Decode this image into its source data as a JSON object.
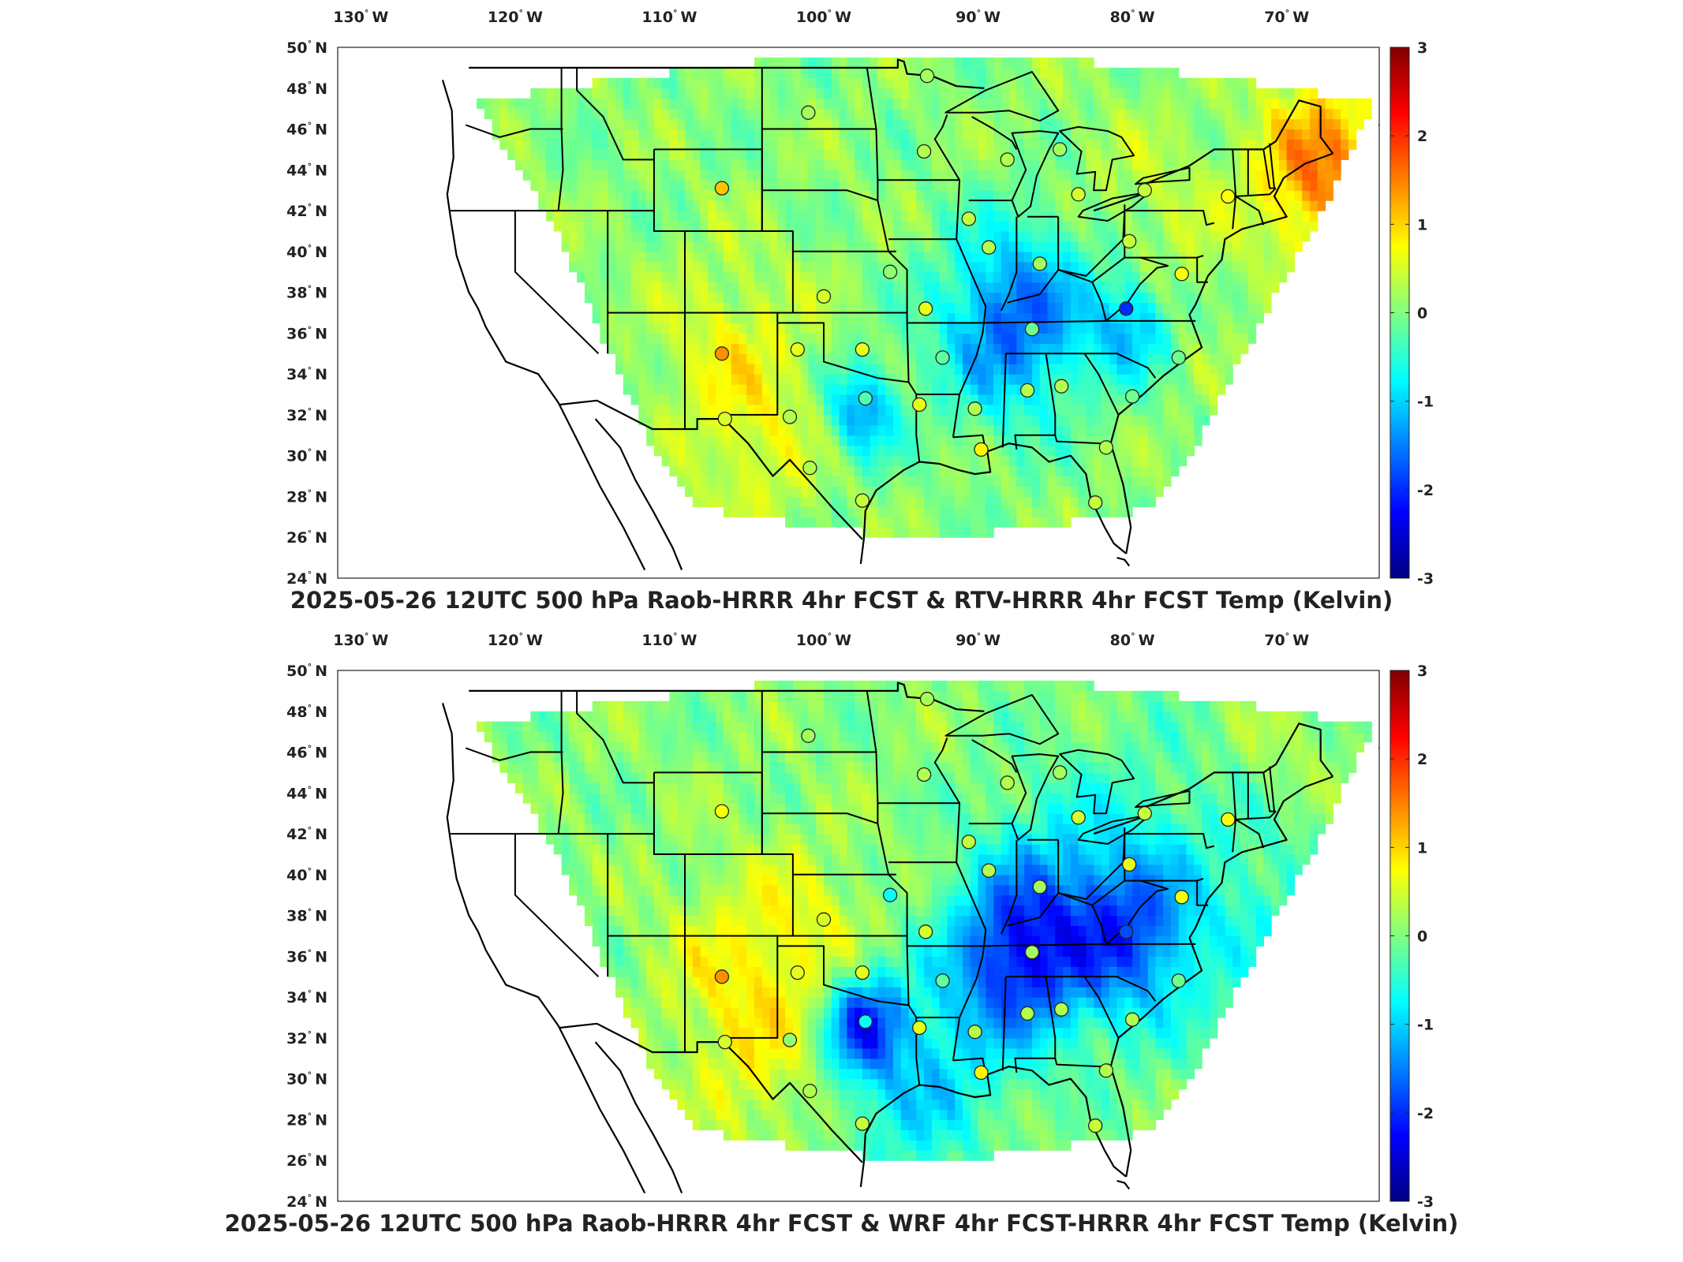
{
  "panels": [
    {
      "title": "2025-05-26 12UTC 500 hPa Raob-HRRR 4hr FCST & RTV-HRRR 4hr FCST Temp (Kelvin)",
      "bias": "warm_east",
      "stations": [
        {
          "lon": -93.3,
          "lat": 48.6,
          "v": 0.2
        },
        {
          "lon": -101.0,
          "lat": 46.8,
          "v": 0.2
        },
        {
          "lon": -93.5,
          "lat": 44.9,
          "v": 0.3
        },
        {
          "lon": -88.1,
          "lat": 44.5,
          "v": 0.3
        },
        {
          "lon": -84.7,
          "lat": 45.0,
          "v": 0.2
        },
        {
          "lon": -106.6,
          "lat": 43.1,
          "v": 1.1
        },
        {
          "lon": -90.6,
          "lat": 41.6,
          "v": 0.4
        },
        {
          "lon": -83.5,
          "lat": 42.8,
          "v": 0.5
        },
        {
          "lon": -79.2,
          "lat": 43.0,
          "v": 0.4
        },
        {
          "lon": -73.8,
          "lat": 42.7,
          "v": 0.7
        },
        {
          "lon": -89.3,
          "lat": 40.2,
          "v": 0.3
        },
        {
          "lon": -80.2,
          "lat": 40.5,
          "v": 0.4
        },
        {
          "lon": -86.0,
          "lat": 39.4,
          "v": 0.2
        },
        {
          "lon": -95.7,
          "lat": 39.0,
          "v": 0.1
        },
        {
          "lon": -76.8,
          "lat": 38.9,
          "v": 0.7
        },
        {
          "lon": -100.0,
          "lat": 37.8,
          "v": 0.5
        },
        {
          "lon": -93.4,
          "lat": 37.2,
          "v": 0.6
        },
        {
          "lon": -80.4,
          "lat": 37.2,
          "v": -2.0
        },
        {
          "lon": -86.5,
          "lat": 36.2,
          "v": -0.1
        },
        {
          "lon": -101.7,
          "lat": 35.2,
          "v": 0.6
        },
        {
          "lon": -106.6,
          "lat": 35.0,
          "v": 1.4
        },
        {
          "lon": -97.5,
          "lat": 35.2,
          "v": 0.6
        },
        {
          "lon": -92.3,
          "lat": 34.8,
          "v": -0.2
        },
        {
          "lon": -77.0,
          "lat": 34.8,
          "v": -0.1
        },
        {
          "lon": -86.8,
          "lat": 33.2,
          "v": 0.3
        },
        {
          "lon": -84.6,
          "lat": 33.4,
          "v": 0.3
        },
        {
          "lon": -97.3,
          "lat": 32.8,
          "v": -0.3
        },
        {
          "lon": -80.0,
          "lat": 32.9,
          "v": -0.1
        },
        {
          "lon": -93.8,
          "lat": 32.5,
          "v": 0.6
        },
        {
          "lon": -90.2,
          "lat": 32.3,
          "v": 0.3
        },
        {
          "lon": -102.2,
          "lat": 31.9,
          "v": 0.3
        },
        {
          "lon": -106.4,
          "lat": 31.8,
          "v": 0.5
        },
        {
          "lon": -89.8,
          "lat": 30.3,
          "v": 0.8
        },
        {
          "lon": -81.7,
          "lat": 30.4,
          "v": 0.3
        },
        {
          "lon": -100.9,
          "lat": 29.4,
          "v": 0.3
        },
        {
          "lon": -97.5,
          "lat": 27.8,
          "v": 0.4
        },
        {
          "lon": -82.4,
          "lat": 27.7,
          "v": 0.4
        }
      ]
    },
    {
      "title": "2025-05-26 12UTC 500 hPa Raob-HRRR 4hr FCST & WRF 4hr FCST-HRRR 4hr FCST Temp (Kelvin)",
      "bias": "cool_east",
      "stations": [
        {
          "lon": -93.3,
          "lat": 48.6,
          "v": 0.2
        },
        {
          "lon": -101.0,
          "lat": 46.8,
          "v": 0.2
        },
        {
          "lon": -93.5,
          "lat": 44.9,
          "v": 0.3
        },
        {
          "lon": -88.1,
          "lat": 44.5,
          "v": 0.3
        },
        {
          "lon": -84.7,
          "lat": 45.0,
          "v": 0.2
        },
        {
          "lon": -106.6,
          "lat": 43.1,
          "v": 0.7
        },
        {
          "lon": -90.6,
          "lat": 41.6,
          "v": 0.4
        },
        {
          "lon": -83.5,
          "lat": 42.8,
          "v": 0.5
        },
        {
          "lon": -79.2,
          "lat": 43.0,
          "v": 0.4
        },
        {
          "lon": -73.8,
          "lat": 42.7,
          "v": 0.7
        },
        {
          "lon": -89.3,
          "lat": 40.2,
          "v": 0.3
        },
        {
          "lon": -80.2,
          "lat": 40.5,
          "v": 0.6
        },
        {
          "lon": -86.0,
          "lat": 39.4,
          "v": 0.2
        },
        {
          "lon": -95.7,
          "lat": 39.0,
          "v": -0.7
        },
        {
          "lon": -76.8,
          "lat": 38.9,
          "v": 0.7
        },
        {
          "lon": -100.0,
          "lat": 37.8,
          "v": 0.5
        },
        {
          "lon": -93.4,
          "lat": 37.2,
          "v": 0.5
        },
        {
          "lon": -80.4,
          "lat": 37.2,
          "v": -1.8
        },
        {
          "lon": -86.5,
          "lat": 36.2,
          "v": 0.2
        },
        {
          "lon": -101.7,
          "lat": 35.2,
          "v": 0.6
        },
        {
          "lon": -106.6,
          "lat": 35.0,
          "v": 1.4
        },
        {
          "lon": -97.5,
          "lat": 35.2,
          "v": 0.6
        },
        {
          "lon": -92.3,
          "lat": 34.8,
          "v": -0.2
        },
        {
          "lon": -77.0,
          "lat": 34.8,
          "v": -0.1
        },
        {
          "lon": -86.8,
          "lat": 33.2,
          "v": 0.3
        },
        {
          "lon": -84.6,
          "lat": 33.4,
          "v": 0.3
        },
        {
          "lon": -97.3,
          "lat": 32.8,
          "v": -0.7
        },
        {
          "lon": -80.0,
          "lat": 32.9,
          "v": 0.3
        },
        {
          "lon": -93.8,
          "lat": 32.5,
          "v": 0.6
        },
        {
          "lon": -90.2,
          "lat": 32.3,
          "v": 0.3
        },
        {
          "lon": -102.2,
          "lat": 31.9,
          "v": 0.1
        },
        {
          "lon": -106.4,
          "lat": 31.8,
          "v": 0.5
        },
        {
          "lon": -89.8,
          "lat": 30.3,
          "v": 0.8
        },
        {
          "lon": -81.7,
          "lat": 30.4,
          "v": 0.3
        },
        {
          "lon": -100.9,
          "lat": 29.4,
          "v": 0.3
        },
        {
          "lon": -97.5,
          "lat": 27.8,
          "v": 0.4
        },
        {
          "lon": -82.4,
          "lat": 27.7,
          "v": 0.4
        }
      ]
    }
  ],
  "lon_ticks": [
    "130",
    "120",
    "110",
    "100",
    "90",
    "80",
    "70"
  ],
  "lon_suffix": "W",
  "lat_ticks": [
    "50",
    "48",
    "46",
    "44",
    "42",
    "40",
    "38",
    "36",
    "34",
    "32",
    "30",
    "28",
    "26",
    "24"
  ],
  "lat_suffix": "N",
  "colorbar_ticks": [
    "3",
    "2",
    "1",
    "0",
    "-1",
    "-2",
    "-3"
  ],
  "colorbar_range": [
    -3,
    3
  ],
  "colormap": [
    "#000080",
    "#0000ff",
    "#0080ff",
    "#00ffff",
    "#80ff80",
    "#ffff00",
    "#ff8000",
    "#ff0000",
    "#800000"
  ]
}
